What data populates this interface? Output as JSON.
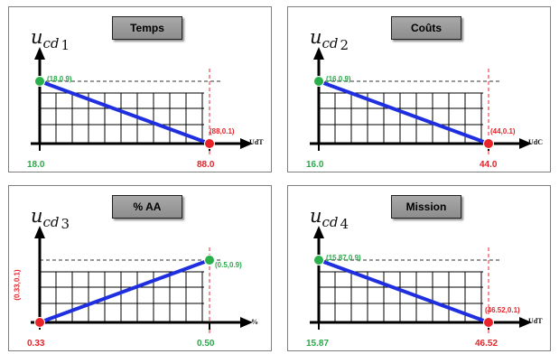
{
  "colors": {
    "line": "#1f2fe0",
    "green": "#2ab04a",
    "red": "#e8232a",
    "green_text": "#2aa84a",
    "red_text": "#e0262b",
    "grid": "#000000",
    "dash_green": "#555555",
    "dash_red": "#e8232a"
  },
  "chart_data": [
    {
      "type": "line",
      "title": "Temps",
      "ylabel_var": "u",
      "ylabel_sub": "cd",
      "ylabel_index": "1",
      "xlabel": "UdT",
      "x_ticks": [
        "18.0",
        "88.0"
      ],
      "points": [
        {
          "x": 18.0,
          "y": 0.9,
          "label": "(18,0.9)",
          "marker": "green"
        },
        {
          "x": 88.0,
          "y": 0.1,
          "label": "(88,0.1)",
          "marker": "red"
        }
      ],
      "xlim": [
        18.0,
        88.0
      ],
      "ylim": [
        0.1,
        0.9
      ]
    },
    {
      "type": "line",
      "title": "Coûts",
      "ylabel_var": "u",
      "ylabel_sub": "cd",
      "ylabel_index": "2",
      "xlabel": "UdC",
      "x_ticks": [
        "16.0",
        "44.0"
      ],
      "points": [
        {
          "x": 16.0,
          "y": 0.9,
          "label": "(16,0.9)",
          "marker": "green"
        },
        {
          "x": 44.0,
          "y": 0.1,
          "label": "(44,0.1)",
          "marker": "red"
        }
      ],
      "xlim": [
        16.0,
        44.0
      ],
      "ylim": [
        0.1,
        0.9
      ]
    },
    {
      "type": "line",
      "title": "% AA",
      "ylabel_var": "u",
      "ylabel_sub": "cd",
      "ylabel_index": "3",
      "xlabel": "%",
      "x_ticks": [
        "0.33",
        "0.50"
      ],
      "points": [
        {
          "x": 0.33,
          "y": 0.1,
          "label": "(0.33,0.1)",
          "marker": "red"
        },
        {
          "x": 0.5,
          "y": 0.9,
          "label": "(0.5,0.9)",
          "marker": "green"
        }
      ],
      "xlim": [
        0.33,
        0.5
      ],
      "ylim": [
        0.1,
        0.9
      ]
    },
    {
      "type": "line",
      "title": "Mission",
      "ylabel_var": "u",
      "ylabel_sub": "cd",
      "ylabel_index": "4",
      "xlabel": "UdT",
      "x_ticks": [
        "15.87",
        "46.52"
      ],
      "points": [
        {
          "x": 15.87,
          "y": 0.9,
          "label": "(15.87,0.9)",
          "marker": "green"
        },
        {
          "x": 46.52,
          "y": 0.1,
          "label": "(46.52,0.1)",
          "marker": "red"
        }
      ],
      "xlim": [
        15.87,
        46.52
      ],
      "ylim": [
        0.1,
        0.9
      ]
    }
  ]
}
